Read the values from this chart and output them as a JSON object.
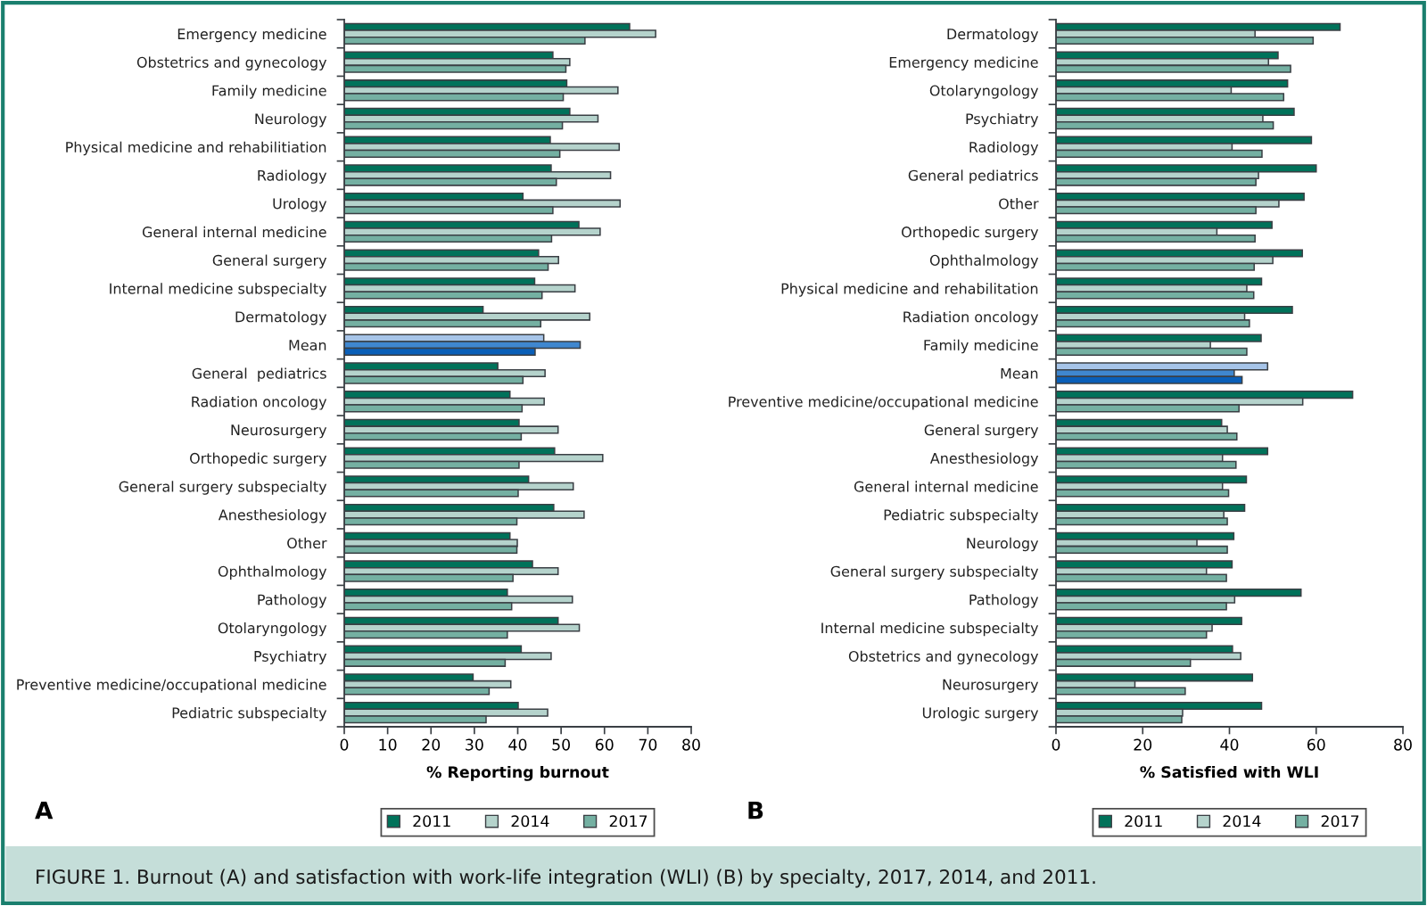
{
  "chart_data": [
    {
      "type": "bar",
      "orientation": "horizontal",
      "xlabel": "% Reporting burnout",
      "xlim": [
        0,
        80
      ],
      "xticks": [
        0,
        10,
        20,
        30,
        40,
        50,
        60,
        70,
        80
      ],
      "grid": false,
      "legend": "bottom",
      "annotations": [
        "A",
        "FIGURE 1. Burnout (A) and satisfaction with work-life integration (WLI) (B) by specialty, 2017, 2014, and 2011."
      ],
      "categories": [
        "Emergency medicine",
        "Obstetrics and gynecology",
        "Family medicine",
        "Neurology",
        "Physical medicine and rehabilitiation",
        "Radiology",
        "Urology",
        "General internal medicine",
        "General surgery",
        "Internal medicine subspecialty",
        "Dermatology",
        "Mean",
        "General  pediatrics",
        "Radiation oncology",
        "Neurosurgery",
        "Orthopedic surgery",
        "General surgery subspecialty",
        "Anesthesiology",
        "Other",
        "Ophthalmology",
        "Pathology",
        "Otolaryngology",
        "Psychiatry",
        "Preventive medicine/occupational medicine",
        "Pediatric subspecialty"
      ],
      "series": [
        {
          "name": "2011",
          "color": "#00725a",
          "colors": [
            "#00725a",
            "#00725a",
            "#00725a",
            "#00725a",
            "#00725a",
            "#00725a",
            "#00725a",
            "#00725a",
            "#00725a",
            "#00725a",
            "#00725a",
            "#a6c4e8",
            "#00725a",
            "#00725a",
            "#00725a",
            "#00725a",
            "#00725a",
            "#00725a",
            "#00725a",
            "#00725a",
            "#00725a",
            "#00725a",
            "#00725a",
            "#00725a",
            "#00725a"
          ],
          "values": [
            65.8,
            48.1,
            51.3,
            52.0,
            47.5,
            47.7,
            41.2,
            54.1,
            44.8,
            43.9,
            32.0,
            46.0,
            35.4,
            38.2,
            40.3,
            48.5,
            42.5,
            48.3,
            38.2,
            43.4,
            37.6,
            49.3,
            40.8,
            29.7,
            40.1
          ]
        },
        {
          "name": "2014",
          "color": "#b5d3cc",
          "colors": [
            "#b5d3cc",
            "#b5d3cc",
            "#b5d3cc",
            "#b5d3cc",
            "#b5d3cc",
            "#b5d3cc",
            "#b5d3cc",
            "#b5d3cc",
            "#b5d3cc",
            "#b5d3cc",
            "#b5d3cc",
            "#3f87cf",
            "#b5d3cc",
            "#b5d3cc",
            "#b5d3cc",
            "#b5d3cc",
            "#b5d3cc",
            "#b5d3cc",
            "#b5d3cc",
            "#b5d3cc",
            "#b5d3cc",
            "#b5d3cc",
            "#b5d3cc",
            "#b5d3cc",
            "#b5d3cc"
          ],
          "values": [
            71.8,
            52.0,
            63.1,
            58.5,
            63.4,
            61.4,
            63.6,
            59.0,
            49.4,
            53.2,
            56.6,
            54.4,
            46.3,
            46.1,
            49.3,
            59.6,
            52.8,
            55.3,
            39.9,
            49.3,
            52.6,
            54.2,
            47.7,
            38.4,
            46.9
          ]
        },
        {
          "name": "2017",
          "color": "#74b0a2",
          "colors": [
            "#74b0a2",
            "#74b0a2",
            "#74b0a2",
            "#74b0a2",
            "#74b0a2",
            "#74b0a2",
            "#74b0a2",
            "#74b0a2",
            "#74b0a2",
            "#74b0a2",
            "#74b0a2",
            "#0a5fb8",
            "#74b0a2",
            "#74b0a2",
            "#74b0a2",
            "#74b0a2",
            "#74b0a2",
            "#74b0a2",
            "#74b0a2",
            "#74b0a2",
            "#74b0a2",
            "#74b0a2",
            "#74b0a2",
            "#74b0a2",
            "#74b0a2"
          ],
          "values": [
            55.5,
            51.1,
            50.5,
            50.3,
            49.7,
            48.9,
            48.1,
            47.8,
            47.0,
            45.6,
            45.3,
            44.0,
            41.2,
            41.0,
            40.8,
            40.3,
            40.1,
            39.8,
            39.8,
            38.9,
            38.6,
            37.6,
            37.1,
            33.4,
            32.7
          ]
        }
      ]
    },
    {
      "type": "bar",
      "orientation": "horizontal",
      "xlabel": "% Satisfied with WLI",
      "xlim": [
        0,
        80
      ],
      "xticks": [
        0,
        20,
        40,
        60,
        80
      ],
      "grid": false,
      "legend": "bottom",
      "annotations": [
        "B"
      ],
      "categories": [
        "Dermatology",
        "Emergency medicine",
        "Otolaryngology",
        "Psychiatry",
        "Radiology",
        "General pediatrics",
        "Other",
        "Orthopedic surgery",
        "Ophthalmology",
        "Physical medicine and rehabilitation",
        "Radiation oncology",
        "Family medicine",
        "Mean",
        "Preventive medicine/occupational medicine",
        "General surgery",
        "Anesthesiology",
        "General internal medicine",
        "Pediatric subspecialty",
        "Neurology",
        "General surgery subspecialty",
        "Pathology",
        "Internal medicine subspecialty",
        "Obstetrics and gynecology",
        "Neurosurgery",
        "Urologic surgery"
      ],
      "series": [
        {
          "name": "2011",
          "color": "#00725a",
          "colors": [
            "#00725a",
            "#00725a",
            "#00725a",
            "#00725a",
            "#00725a",
            "#00725a",
            "#00725a",
            "#00725a",
            "#00725a",
            "#00725a",
            "#00725a",
            "#00725a",
            "#a6c4e8",
            "#00725a",
            "#00725a",
            "#00725a",
            "#00725a",
            "#00725a",
            "#00725a",
            "#00725a",
            "#00725a",
            "#00725a",
            "#00725a",
            "#00725a",
            "#00725a"
          ],
          "values": [
            65.5,
            51.2,
            53.4,
            54.9,
            58.9,
            60.0,
            57.2,
            49.8,
            56.8,
            47.4,
            54.5,
            47.3,
            48.8,
            68.4,
            38.2,
            48.8,
            43.9,
            43.5,
            41.0,
            40.6,
            56.5,
            42.8,
            40.7,
            45.3,
            47.4
          ]
        },
        {
          "name": "2014",
          "color": "#b5d3cc",
          "colors": [
            "#b5d3cc",
            "#b5d3cc",
            "#b5d3cc",
            "#b5d3cc",
            "#b5d3cc",
            "#b5d3cc",
            "#b5d3cc",
            "#b5d3cc",
            "#b5d3cc",
            "#b5d3cc",
            "#b5d3cc",
            "#b5d3cc",
            "#3f87cf",
            "#b5d3cc",
            "#b5d3cc",
            "#b5d3cc",
            "#b5d3cc",
            "#b5d3cc",
            "#b5d3cc",
            "#b5d3cc",
            "#b5d3cc",
            "#b5d3cc",
            "#b5d3cc",
            "#b5d3cc",
            "#b5d3cc"
          ],
          "values": [
            45.9,
            49.0,
            40.4,
            47.7,
            40.6,
            46.7,
            51.4,
            37.1,
            50.0,
            44.0,
            43.5,
            35.6,
            41.1,
            56.9,
            39.5,
            38.4,
            38.4,
            38.7,
            32.5,
            34.7,
            41.2,
            36.0,
            42.6,
            18.2,
            29.2
          ]
        },
        {
          "name": "2017",
          "color": "#74b0a2",
          "colors": [
            "#74b0a2",
            "#74b0a2",
            "#74b0a2",
            "#74b0a2",
            "#74b0a2",
            "#74b0a2",
            "#74b0a2",
            "#74b0a2",
            "#74b0a2",
            "#74b0a2",
            "#74b0a2",
            "#74b0a2",
            "#0a5fb8",
            "#74b0a2",
            "#74b0a2",
            "#74b0a2",
            "#74b0a2",
            "#74b0a2",
            "#74b0a2",
            "#74b0a2",
            "#74b0a2",
            "#74b0a2",
            "#74b0a2",
            "#74b0a2",
            "#74b0a2"
          ],
          "values": [
            59.3,
            54.1,
            52.5,
            50.1,
            47.5,
            46.1,
            46.1,
            45.9,
            45.7,
            45.6,
            44.6,
            44.0,
            42.9,
            42.2,
            41.7,
            41.5,
            39.8,
            39.5,
            39.5,
            39.3,
            39.3,
            34.7,
            31.0,
            29.8,
            29.0
          ]
        }
      ]
    }
  ]
}
